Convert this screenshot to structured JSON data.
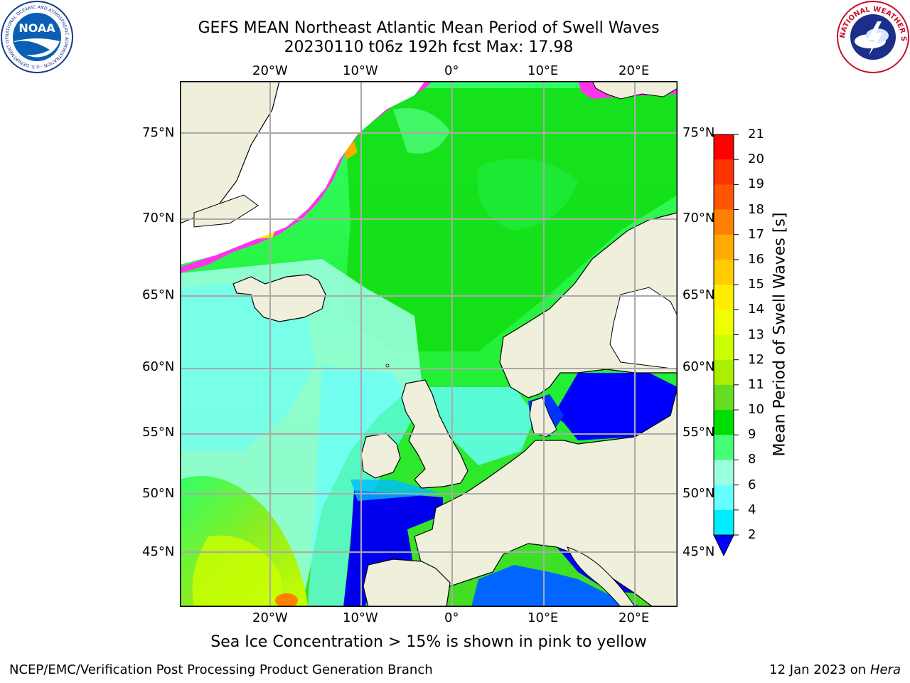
{
  "title": {
    "line1": "GEFS MEAN Northeast Atlantic Mean Period of Swell Waves",
    "line2": "20230110 t06z 192h fcst   Max: 17.98"
  },
  "axes": {
    "lon_labels": [
      "20°W",
      "10°W",
      "0°",
      "10°E",
      "20°E"
    ],
    "lat_labels": [
      "75°N",
      "70°N",
      "65°N",
      "60°N",
      "55°N",
      "50°N",
      "45°N"
    ]
  },
  "colorbar": {
    "label": "Mean Period of Swell Waves [s]",
    "ticks": [
      "21",
      "20",
      "19",
      "18",
      "17",
      "16",
      "15",
      "14",
      "13",
      "12",
      "11",
      "10",
      "9",
      "8",
      "6",
      "4",
      "2"
    ],
    "colors": [
      "#ff0000",
      "#ff3300",
      "#ff5500",
      "#ff8000",
      "#ffaa00",
      "#ffcc00",
      "#ffee00",
      "#eeff00",
      "#ccff00",
      "#aaee00",
      "#66dd22",
      "#00dd00",
      "#44ff77",
      "#99ffdd",
      "#66ffff",
      "#00eeff",
      "#00bbff",
      "#0077ff"
    ],
    "under_color": "#0000ff"
  },
  "caption": "Sea Ice Concentration > 15% is shown in pink to yellow",
  "footer": {
    "left": "NCEP/EMC/Verification Post Processing Product Generation Branch",
    "right_date": "12 Jan 2023 on ",
    "right_host": "Hera"
  },
  "logos": {
    "left": "noaa-logo",
    "right": "national-weather-service-logo",
    "left_text": "NATIONAL OCEANIC AND ATMOSPHERIC ADMINISTRATION · U.S. DEPARTMENT OF COMMERCE",
    "left_center": "NOAA",
    "right_text": "NATIONAL WEATHER SERVICE"
  }
}
